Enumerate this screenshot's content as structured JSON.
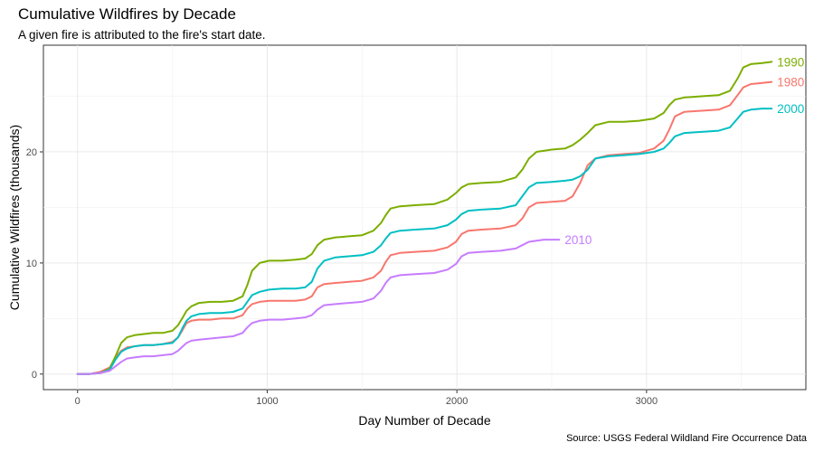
{
  "chart_data": {
    "type": "line",
    "title": "Cumulative Wildfires by Decade",
    "subtitle": "A given fire is attributed to the fire's start date.",
    "caption": "Source: USGS Federal Wildland Fire Occurrence Data",
    "xlabel": "Day Number of Decade",
    "ylabel": "Cumulative Wildfires (thousands)",
    "xlim": [
      -180,
      3840
    ],
    "ylim": [
      -1.4,
      29.6
    ],
    "xticks": [
      0,
      1000,
      2000,
      3000
    ],
    "xtick_labels": [
      "0",
      "1000",
      "2000",
      "3000"
    ],
    "yticks": [
      0,
      10,
      20
    ],
    "ytick_labels": [
      "0",
      "10",
      "20"
    ],
    "grid": true,
    "series": [
      {
        "name": "1980",
        "label": "1980",
        "color": "#F8766D",
        "x": [
          0,
          60,
          120,
          170,
          200,
          230,
          260,
          300,
          350,
          400,
          450,
          500,
          530,
          555,
          575,
          600,
          640,
          700,
          760,
          820,
          870,
          895,
          920,
          960,
          1010,
          1080,
          1150,
          1200,
          1235,
          1265,
          1300,
          1360,
          1430,
          1500,
          1560,
          1600,
          1625,
          1650,
          1700,
          1780,
          1880,
          1950,
          1995,
          2025,
          2060,
          2130,
          2230,
          2310,
          2345,
          2380,
          2420,
          2500,
          2570,
          2610,
          2650,
          2690,
          2730,
          2800,
          2880,
          2960,
          3040,
          3090,
          3120,
          3150,
          3200,
          3290,
          3380,
          3440,
          3480,
          3510,
          3550,
          3610,
          3660
        ],
        "y": [
          0,
          0,
          0.2,
          0.6,
          1.5,
          2.1,
          2.4,
          2.5,
          2.6,
          2.6,
          2.7,
          2.9,
          3.3,
          4.0,
          4.6,
          4.8,
          4.9,
          4.9,
          5.0,
          5.0,
          5.3,
          5.9,
          6.3,
          6.5,
          6.6,
          6.6,
          6.6,
          6.7,
          7.0,
          7.8,
          8.1,
          8.2,
          8.3,
          8.4,
          8.7,
          9.3,
          10.1,
          10.7,
          10.9,
          11.0,
          11.1,
          11.4,
          11.9,
          12.6,
          12.9,
          13.0,
          13.1,
          13.4,
          14.0,
          15.0,
          15.4,
          15.5,
          15.6,
          16.0,
          17.2,
          18.8,
          19.4,
          19.7,
          19.8,
          19.9,
          20.3,
          21.0,
          22.0,
          23.2,
          23.6,
          23.7,
          23.8,
          24.2,
          25.1,
          25.8,
          26.1,
          26.2,
          26.3
        ]
      },
      {
        "name": "1990",
        "label": "1990",
        "color": "#7CAE00",
        "x": [
          0,
          60,
          120,
          170,
          200,
          230,
          260,
          300,
          350,
          400,
          450,
          500,
          530,
          555,
          575,
          600,
          640,
          700,
          760,
          820,
          870,
          895,
          920,
          960,
          1010,
          1080,
          1150,
          1200,
          1235,
          1265,
          1300,
          1360,
          1430,
          1500,
          1560,
          1600,
          1625,
          1650,
          1700,
          1780,
          1880,
          1950,
          1995,
          2025,
          2060,
          2130,
          2230,
          2310,
          2345,
          2380,
          2420,
          2500,
          2570,
          2610,
          2650,
          2690,
          2730,
          2800,
          2880,
          2960,
          3040,
          3090,
          3120,
          3150,
          3200,
          3290,
          3380,
          3440,
          3480,
          3510,
          3550,
          3610,
          3660
        ],
        "y": [
          0,
          0,
          0.1,
          0.5,
          1.6,
          2.8,
          3.3,
          3.5,
          3.6,
          3.7,
          3.7,
          3.9,
          4.4,
          5.1,
          5.7,
          6.1,
          6.4,
          6.5,
          6.5,
          6.6,
          7.0,
          8.0,
          9.3,
          10.0,
          10.2,
          10.2,
          10.3,
          10.4,
          10.8,
          11.6,
          12.1,
          12.3,
          12.4,
          12.5,
          12.9,
          13.6,
          14.3,
          14.9,
          15.1,
          15.2,
          15.3,
          15.7,
          16.3,
          16.8,
          17.1,
          17.2,
          17.3,
          17.7,
          18.4,
          19.4,
          20.0,
          20.2,
          20.3,
          20.6,
          21.1,
          21.7,
          22.4,
          22.7,
          22.7,
          22.8,
          23.0,
          23.5,
          24.2,
          24.7,
          24.9,
          25.0,
          25.1,
          25.5,
          26.6,
          27.6,
          27.9,
          28.0,
          28.1
        ]
      },
      {
        "name": "2000",
        "label": "2000",
        "color": "#00BFC4",
        "x": [
          0,
          60,
          120,
          170,
          200,
          230,
          260,
          300,
          350,
          400,
          450,
          500,
          530,
          555,
          575,
          600,
          640,
          700,
          760,
          820,
          870,
          895,
          920,
          960,
          1010,
          1080,
          1150,
          1200,
          1235,
          1265,
          1300,
          1360,
          1430,
          1500,
          1560,
          1600,
          1625,
          1650,
          1700,
          1780,
          1880,
          1950,
          1995,
          2025,
          2060,
          2130,
          2230,
          2310,
          2345,
          2380,
          2420,
          2500,
          2570,
          2610,
          2650,
          2690,
          2730,
          2800,
          2880,
          2960,
          3040,
          3090,
          3120,
          3150,
          3200,
          3290,
          3380,
          3440,
          3480,
          3510,
          3550,
          3610,
          3660
        ],
        "y": [
          0,
          0,
          0.1,
          0.4,
          1.3,
          2.0,
          2.3,
          2.5,
          2.6,
          2.6,
          2.7,
          2.8,
          3.3,
          4.2,
          4.8,
          5.2,
          5.4,
          5.5,
          5.5,
          5.6,
          5.9,
          6.5,
          7.1,
          7.4,
          7.6,
          7.7,
          7.7,
          7.8,
          8.3,
          9.5,
          10.2,
          10.5,
          10.6,
          10.7,
          11.0,
          11.6,
          12.2,
          12.7,
          12.9,
          13.0,
          13.1,
          13.4,
          13.9,
          14.4,
          14.7,
          14.8,
          14.9,
          15.2,
          16.0,
          16.8,
          17.2,
          17.3,
          17.4,
          17.5,
          17.8,
          18.4,
          19.4,
          19.6,
          19.7,
          19.8,
          20.0,
          20.3,
          20.8,
          21.4,
          21.7,
          21.8,
          21.9,
          22.2,
          23.0,
          23.6,
          23.8,
          23.9,
          23.9
        ]
      },
      {
        "name": "2010",
        "label": "2010",
        "color": "#C77CFF",
        "x": [
          0,
          60,
          120,
          170,
          200,
          230,
          260,
          300,
          350,
          400,
          450,
          500,
          530,
          555,
          575,
          600,
          640,
          700,
          760,
          820,
          870,
          895,
          920,
          960,
          1010,
          1080,
          1150,
          1200,
          1235,
          1265,
          1300,
          1360,
          1430,
          1500,
          1560,
          1600,
          1625,
          1650,
          1700,
          1780,
          1880,
          1950,
          1995,
          2025,
          2060,
          2130,
          2230,
          2310,
          2345,
          2380,
          2420,
          2460,
          2500,
          2540
        ],
        "y": [
          0,
          0,
          0.1,
          0.3,
          0.7,
          1.1,
          1.4,
          1.5,
          1.6,
          1.6,
          1.7,
          1.8,
          2.1,
          2.5,
          2.8,
          3.0,
          3.1,
          3.2,
          3.3,
          3.4,
          3.7,
          4.2,
          4.6,
          4.8,
          4.9,
          4.9,
          5.0,
          5.1,
          5.3,
          5.8,
          6.2,
          6.3,
          6.4,
          6.5,
          6.8,
          7.5,
          8.2,
          8.7,
          8.9,
          9.0,
          9.1,
          9.4,
          9.9,
          10.6,
          10.9,
          11.0,
          11.1,
          11.3,
          11.6,
          11.9,
          12.0,
          12.1,
          12.1,
          12.1
        ]
      }
    ]
  }
}
